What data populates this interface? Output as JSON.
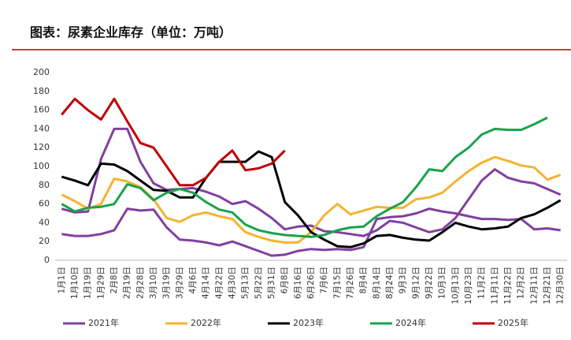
{
  "chart_data": {
    "type": "line",
    "title": "图表：尿素企业库存（单位：万吨）",
    "categories": [
      "1月1日",
      "1月10日",
      "1月19日",
      "1月29日",
      "2月8日",
      "2月19日",
      "2月28日",
      "3月10日",
      "3月19日",
      "3月29日",
      "4月6日",
      "4月14日",
      "4月22日",
      "4月30日",
      "5月13日",
      "5月22日",
      "5月31日",
      "6月8日",
      "6月16日",
      "6月26日",
      "7月6日",
      "7月15日",
      "7月26日",
      "8月4日",
      "8月14日",
      "8月24日",
      "9月3日",
      "9月12日",
      "9月22日",
      "10月3日",
      "10月13日",
      "10月23日",
      "11月2日",
      "11月11日",
      "11月22日",
      "12月2日",
      "12月11日",
      "12月21日",
      "12月30日"
    ],
    "series": [
      {
        "name": "2021年",
        "color": "#8040a0",
        "values": [
          55,
          51,
          52,
          108,
          140,
          140,
          105,
          82,
          75,
          76,
          77,
          73,
          68,
          60,
          63,
          55,
          45,
          33,
          36,
          37,
          31,
          30,
          28,
          26,
          32,
          42,
          40,
          35,
          30,
          33,
          45,
          65,
          85,
          97,
          88,
          84,
          82,
          76,
          70
        ]
      },
      {
        "name": null,
        "color": "#8040a0",
        "values": [
          28,
          26,
          26,
          28,
          32,
          55,
          53,
          54,
          35,
          22,
          21,
          19,
          16,
          20,
          15,
          10,
          5,
          6,
          10,
          12,
          11,
          12,
          11,
          14,
          44,
          46,
          47,
          50,
          55,
          52,
          50,
          47,
          44,
          44,
          43,
          44,
          33,
          34,
          32
        ]
      },
      {
        "name": "2022年",
        "color": "#f5b331",
        "values": [
          70,
          63,
          55,
          60,
          87,
          84,
          78,
          65,
          45,
          41,
          48,
          51,
          47,
          44,
          30,
          25,
          21,
          19,
          19,
          30,
          48,
          60,
          49,
          53,
          57,
          56,
          56,
          65,
          67,
          72,
          84,
          95,
          104,
          110,
          106,
          101,
          99,
          86,
          91
        ]
      },
      {
        "name": "2023年",
        "color": "#000000",
        "values": [
          89,
          85,
          80,
          103,
          102,
          95,
          85,
          75,
          74,
          67,
          67,
          88,
          105,
          105,
          105,
          116,
          110,
          62,
          48,
          30,
          22,
          15,
          14,
          18,
          26,
          27,
          24,
          22,
          21,
          30,
          40,
          36,
          33,
          34,
          36,
          45,
          49,
          56,
          64
        ]
      },
      {
        "name": "2024年",
        "color": "#1aa24a",
        "values": [
          60,
          52,
          56,
          57,
          60,
          81,
          77,
          64,
          72,
          76,
          72,
          62,
          54,
          51,
          38,
          32,
          29,
          27,
          26,
          25,
          27,
          32,
          35,
          36,
          47,
          55,
          62,
          78,
          97,
          95,
          110,
          120,
          134,
          140,
          139,
          139,
          145,
          152,
          null
        ]
      },
      {
        "name": "2025年",
        "color": "#c00000",
        "values": [
          155,
          172,
          160,
          150,
          172,
          148,
          125,
          120,
          100,
          80,
          80,
          88,
          105,
          117,
          96,
          98,
          103,
          117,
          null,
          null,
          null,
          null,
          null,
          null,
          null,
          null,
          null,
          null,
          null,
          null,
          null,
          null,
          null,
          null,
          null,
          null,
          null,
          null,
          null
        ]
      }
    ],
    "ylim": [
      0,
      200
    ],
    "yticks": [
      0,
      20,
      40,
      60,
      80,
      100,
      120,
      140,
      160,
      180,
      200
    ]
  }
}
